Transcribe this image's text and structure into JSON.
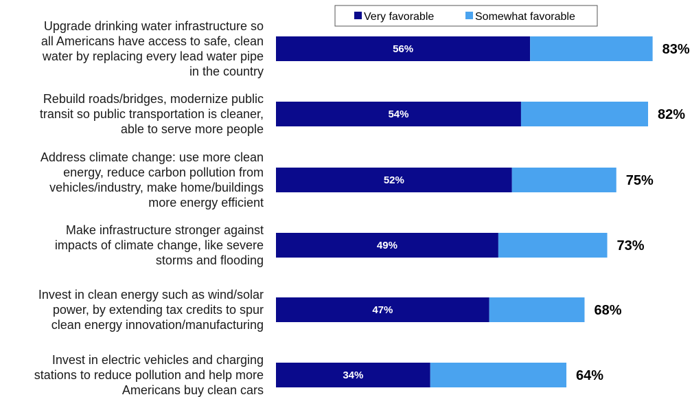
{
  "colors": {
    "very": "#0a0a8c",
    "somewhat": "#4aa3ef"
  },
  "legend": {
    "very_label": "Very favorable",
    "somewhat_label": "Somewhat favorable"
  },
  "chart_data": {
    "type": "bar",
    "orientation": "horizontal",
    "stacked": true,
    "legend_position": "top",
    "grid": false,
    "xlim": [
      0,
      100
    ],
    "categories": [
      [
        "Upgrade drinking water infrastructure so",
        "all Americans have access to safe, clean",
        "water by replacing every lead water pipe",
        "in the country"
      ],
      [
        "Rebuild roads/bridges, modernize public",
        "transit so public transportation is cleaner,",
        "able to serve more people"
      ],
      [
        "Address climate change: use more clean",
        "energy, reduce carbon pollution from",
        "vehicles/industry, make home/buildings",
        "more energy efficient"
      ],
      [
        "Make infrastructure stronger against",
        "impacts of climate change, like severe",
        "storms and flooding"
      ],
      [
        "Invest in clean energy such as wind/solar",
        "power, by extending tax credits to spur",
        "clean energy innovation/manufacturing"
      ],
      [
        "Invest in electric vehicles and charging",
        "stations to reduce pollution and help more",
        "Americans buy clean cars"
      ]
    ],
    "series": [
      {
        "name": "Very favorable",
        "values": [
          56,
          54,
          52,
          49,
          47,
          34
        ]
      },
      {
        "name": "Somewhat favorable",
        "values": [
          27,
          28,
          23,
          24,
          21,
          30
        ]
      }
    ],
    "totals": [
      83,
      82,
      75,
      73,
      68,
      64
    ],
    "segment_labels": [
      "56%",
      "54%",
      "52%",
      "49%",
      "47%",
      "34%"
    ],
    "total_labels": [
      "83%",
      "82%",
      "75%",
      "73%",
      "68%",
      "64%"
    ]
  }
}
